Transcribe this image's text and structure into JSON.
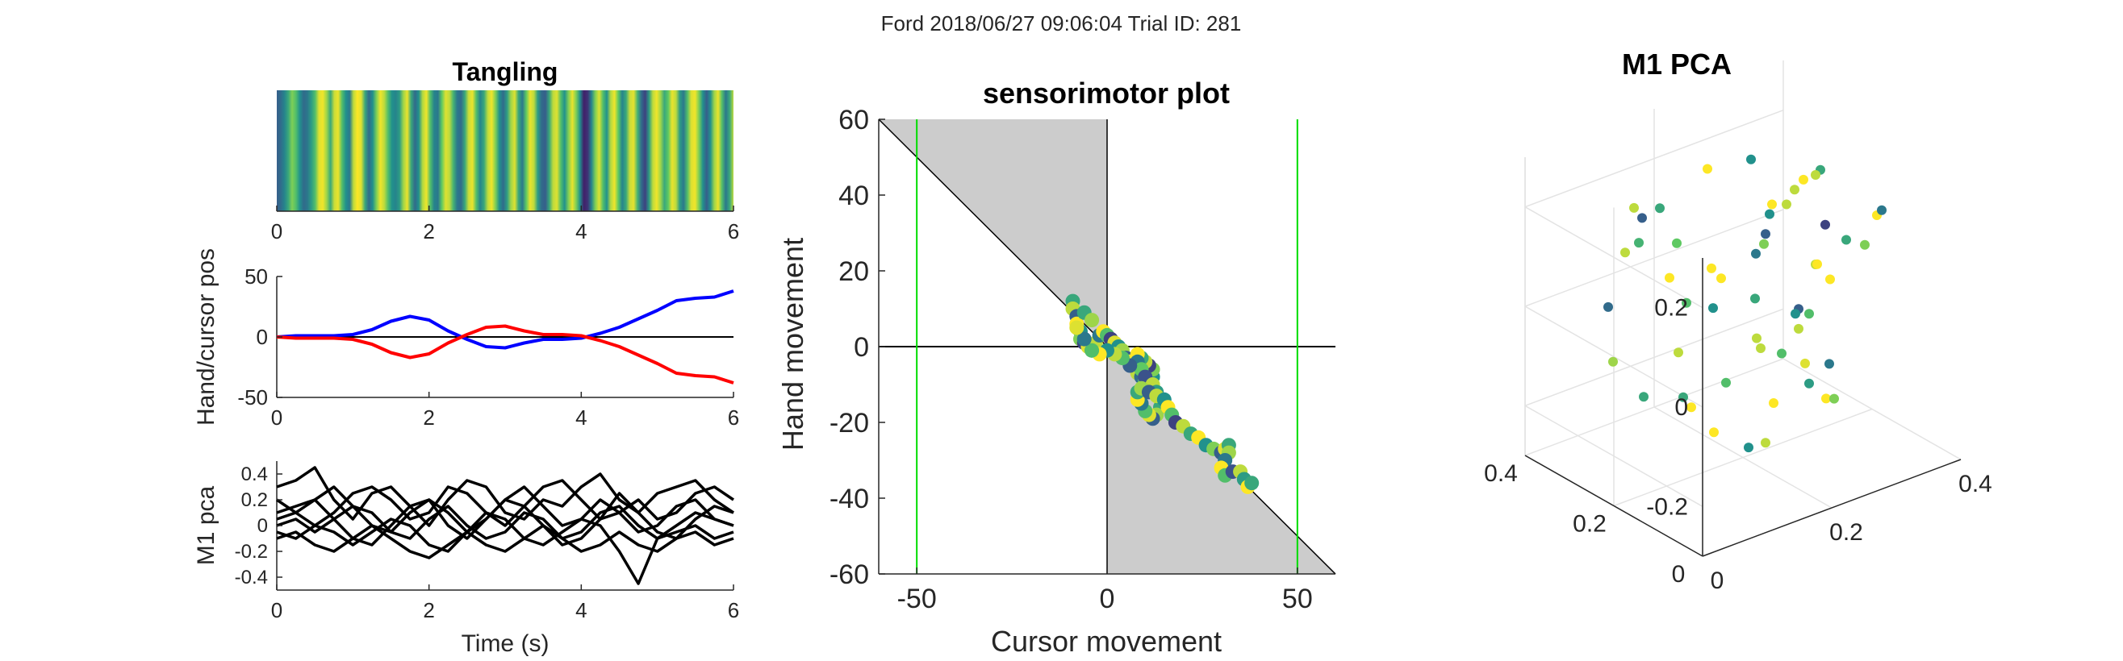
{
  "figure": {
    "suptitle": "Ford 2018/06/27 09:06:04 Trial ID: 281"
  },
  "colors": {
    "hand": "#0000ff",
    "cursor": "#ff0000",
    "pca_lines": "#000000",
    "shade": "#cccccc",
    "bounds": "#00dd00",
    "viridis": [
      "#440154",
      "#3b528b",
      "#21918c",
      "#5ec962",
      "#fde725"
    ]
  },
  "chart_data": [
    {
      "id": "tangling",
      "type": "heatmap",
      "title": "Tangling",
      "xlabel": "",
      "ylabel": "",
      "xlim": [
        0,
        6
      ],
      "xticks": [
        0,
        2,
        4,
        6
      ],
      "x_step": 0.05,
      "values": [
        0.3,
        0.35,
        0.45,
        0.6,
        0.8,
        0.7,
        0.5,
        0.35,
        0.4,
        0.55,
        0.7,
        0.95,
        0.98,
        0.85,
        0.6,
        0.92,
        0.97,
        0.7,
        0.5,
        0.4,
        0.9,
        1.0,
        0.95,
        0.6,
        0.35,
        0.5,
        0.8,
        0.98,
        0.9,
        0.7,
        0.5,
        0.45,
        0.55,
        0.85,
        0.97,
        0.6,
        0.35,
        0.5,
        0.88,
        0.98,
        0.7,
        0.45,
        0.4,
        0.75,
        0.95,
        0.9,
        0.65,
        0.4,
        0.35,
        0.6,
        0.92,
        0.97,
        0.7,
        0.45,
        0.6,
        0.9,
        0.98,
        0.8,
        0.5,
        0.35,
        0.55,
        0.85,
        0.95,
        0.6,
        0.4,
        0.75,
        0.97,
        0.9,
        0.55,
        0.35,
        0.3,
        0.6,
        0.9,
        0.95,
        0.7,
        0.5,
        0.8,
        0.97,
        0.8,
        0.5,
        0.1,
        0.15,
        0.45,
        0.8,
        0.95,
        0.7,
        0.5,
        0.88,
        0.98,
        0.75,
        0.45,
        0.6,
        0.92,
        0.96,
        0.65,
        0.35,
        0.2,
        0.55,
        0.9,
        0.98,
        0.85,
        0.6,
        0.75,
        0.97,
        0.9,
        0.55,
        0.4,
        0.7,
        0.95,
        0.98,
        0.8,
        0.5,
        0.3,
        0.5,
        0.85,
        0.97,
        0.7,
        0.4,
        0.6,
        0.9
      ]
    },
    {
      "id": "hand_cursor",
      "type": "line",
      "xlabel": "",
      "ylabel": "Hand/cursor pos",
      "xlim": [
        0,
        6
      ],
      "ylim": [
        -50,
        50
      ],
      "xticks": [
        0,
        2,
        4,
        6
      ],
      "yticks": [
        -50,
        0,
        50
      ],
      "x": [
        0,
        0.25,
        0.5,
        0.75,
        1.0,
        1.25,
        1.5,
        1.75,
        2.0,
        2.25,
        2.5,
        2.75,
        3.0,
        3.25,
        3.5,
        3.75,
        4.0,
        4.25,
        4.5,
        4.75,
        5.0,
        5.25,
        5.5,
        5.75,
        6.0
      ],
      "series": [
        {
          "color": "hand",
          "values": [
            0,
            1,
            1,
            1,
            2,
            6,
            13,
            17,
            14,
            5,
            -2,
            -8,
            -9,
            -5,
            -2,
            -2,
            -1,
            3,
            8,
            15,
            22,
            30,
            32,
            33,
            38
          ]
        },
        {
          "color": "cursor",
          "values": [
            0,
            -1,
            -1,
            -1,
            -2,
            -6,
            -13,
            -17,
            -14,
            -5,
            2,
            8,
            9,
            5,
            2,
            2,
            1,
            -3,
            -8,
            -15,
            -22,
            -30,
            -32,
            -33,
            -38
          ]
        }
      ]
    },
    {
      "id": "m1_pca_traces",
      "type": "line",
      "xlabel": "Time (s)",
      "ylabel": "M1 pca",
      "xlim": [
        0,
        6
      ],
      "ylim": [
        -0.5,
        0.5
      ],
      "xticks": [
        0,
        2,
        4,
        6
      ],
      "yticks": [
        -0.4,
        -0.2,
        0,
        0.2,
        0.4
      ],
      "x": [
        0,
        0.25,
        0.5,
        0.75,
        1.0,
        1.25,
        1.5,
        1.75,
        2.0,
        2.25,
        2.5,
        2.75,
        3.0,
        3.25,
        3.5,
        3.75,
        4.0,
        4.25,
        4.5,
        4.75,
        5.0,
        5.25,
        5.5,
        5.75,
        6.0
      ],
      "series": [
        {
          "values": [
            0.3,
            0.35,
            0.45,
            0.2,
            0.05,
            0.25,
            0.3,
            0.15,
            0.0,
            0.2,
            0.35,
            0.3,
            0.1,
            0.05,
            0.2,
            0.15,
            0.3,
            0.4,
            0.2,
            0.1,
            0.25,
            0.3,
            0.35,
            0.2,
            0.1
          ]
        },
        {
          "values": [
            0.2,
            0.1,
            0.0,
            0.1,
            0.25,
            0.3,
            0.2,
            0.05,
            0.1,
            0.3,
            0.25,
            0.1,
            0.0,
            0.15,
            0.3,
            0.35,
            0.2,
            0.05,
            0.1,
            0.2,
            0.05,
            0.1,
            0.25,
            0.3,
            0.2
          ]
        },
        {
          "values": [
            0.1,
            0.15,
            0.2,
            0.3,
            0.15,
            0.0,
            -0.05,
            0.1,
            0.2,
            0.1,
            -0.05,
            0.05,
            0.2,
            0.3,
            0.15,
            0.0,
            0.05,
            0.2,
            0.1,
            -0.05,
            0.0,
            0.15,
            0.2,
            0.05,
            0.0
          ]
        },
        {
          "values": [
            0.0,
            0.05,
            -0.05,
            0.05,
            0.15,
            0.1,
            -0.05,
            -0.1,
            0.05,
            0.15,
            0.0,
            -0.1,
            -0.05,
            0.1,
            0.05,
            -0.1,
            -0.05,
            0.1,
            0.15,
            0.0,
            -0.1,
            0.0,
            0.1,
            0.05,
            0.0
          ]
        },
        {
          "values": [
            -0.05,
            -0.1,
            0.0,
            -0.05,
            -0.15,
            -0.05,
            0.05,
            0.0,
            -0.15,
            -0.2,
            -0.05,
            0.1,
            0.05,
            -0.1,
            -0.15,
            -0.05,
            0.05,
            0.0,
            -0.2,
            -0.45,
            -0.1,
            -0.05,
            0.0,
            -0.1,
            -0.05
          ]
        },
        {
          "values": [
            -0.1,
            -0.05,
            -0.15,
            -0.2,
            -0.1,
            0.0,
            -0.1,
            -0.2,
            -0.25,
            -0.15,
            -0.05,
            -0.15,
            -0.2,
            -0.1,
            0.0,
            -0.1,
            -0.2,
            -0.15,
            -0.05,
            -0.15,
            -0.2,
            -0.1,
            -0.05,
            -0.15,
            -0.1
          ]
        },
        {
          "values": [
            0.05,
            0.1,
            0.2,
            0.05,
            -0.1,
            -0.15,
            0.0,
            0.15,
            0.2,
            0.0,
            -0.1,
            0.05,
            0.2,
            0.15,
            0.0,
            -0.15,
            -0.1,
            0.05,
            0.25,
            0.1,
            -0.05,
            -0.1,
            0.05,
            0.15,
            0.1
          ]
        }
      ]
    },
    {
      "id": "sensorimotor",
      "type": "scatter",
      "title": "sensorimotor plot",
      "xlabel": "Cursor movement",
      "ylabel": "Hand movement",
      "xlim": [
        -60,
        60
      ],
      "ylim": [
        -60,
        60
      ],
      "xticks": [
        -50,
        0,
        50
      ],
      "yticks": [
        -60,
        -40,
        -20,
        0,
        20,
        40,
        60
      ],
      "bounds_x": [
        -50,
        50
      ],
      "points": [
        [
          -9,
          12,
          0.6
        ],
        [
          -9,
          10,
          0.9
        ],
        [
          -8,
          8,
          0.3
        ],
        [
          -8,
          6,
          1.0
        ],
        [
          -7,
          4,
          0.5
        ],
        [
          -7,
          2,
          0.8
        ],
        [
          -6,
          1,
          0.2
        ],
        [
          -5,
          0,
          0.95
        ],
        [
          -4,
          -1,
          0.6
        ],
        [
          -3,
          1,
          0.9
        ],
        [
          -2,
          3,
          0.4
        ],
        [
          -1,
          4,
          1.0
        ],
        [
          0,
          3,
          0.7
        ],
        [
          1,
          2,
          0.2
        ],
        [
          2,
          1,
          0.95
        ],
        [
          3,
          0,
          0.5
        ],
        [
          4,
          -1,
          0.85
        ],
        [
          5,
          -3,
          0.3
        ],
        [
          6,
          -4,
          1.0
        ],
        [
          7,
          -5,
          0.6
        ],
        [
          8,
          -7,
          0.9
        ],
        [
          9,
          -8,
          0.35
        ],
        [
          10,
          -9,
          0.7
        ],
        [
          11,
          -10,
          1.0
        ],
        [
          12,
          -8,
          0.5
        ],
        [
          12,
          -6,
          0.8
        ],
        [
          11,
          -5,
          0.2
        ],
        [
          10,
          -4,
          0.9
        ],
        [
          9,
          -3,
          0.6
        ],
        [
          8,
          -2,
          1.0
        ],
        [
          8,
          -4,
          0.4
        ],
        [
          9,
          -6,
          0.75
        ],
        [
          10,
          -8,
          0.25
        ],
        [
          12,
          -10,
          0.9
        ],
        [
          13,
          -12,
          0.55
        ],
        [
          14,
          -14,
          1.0
        ],
        [
          14,
          -16,
          0.6
        ],
        [
          13,
          -18,
          0.85
        ],
        [
          12,
          -19,
          0.3
        ],
        [
          11,
          -18,
          0.95
        ],
        [
          10,
          -17,
          0.7
        ],
        [
          9,
          -15,
          0.4
        ],
        [
          8,
          -14,
          1.0
        ],
        [
          8,
          -12,
          0.6
        ],
        [
          9,
          -11,
          0.85
        ],
        [
          11,
          -12,
          0.3
        ],
        [
          13,
          -13,
          0.9
        ],
        [
          15,
          -14,
          0.5
        ],
        [
          16,
          -16,
          1.0
        ],
        [
          17,
          -18,
          0.7
        ],
        [
          18,
          -20,
          0.2
        ],
        [
          20,
          -21,
          0.9
        ],
        [
          22,
          -23,
          0.6
        ],
        [
          24,
          -24,
          1.0
        ],
        [
          26,
          -26,
          0.5
        ],
        [
          28,
          -27,
          0.8
        ],
        [
          30,
          -28,
          0.3
        ],
        [
          31,
          -27,
          0.95
        ],
        [
          32,
          -26,
          0.6
        ],
        [
          32,
          -28,
          0.85
        ],
        [
          31,
          -30,
          0.4
        ],
        [
          30,
          -32,
          1.0
        ],
        [
          31,
          -34,
          0.7
        ],
        [
          33,
          -33,
          0.25
        ],
        [
          35,
          -33,
          0.9
        ],
        [
          36,
          -35,
          0.55
        ],
        [
          37,
          -37,
          1.0
        ],
        [
          38,
          -36,
          0.6
        ],
        [
          6,
          -5,
          0.3
        ],
        [
          4,
          -3,
          0.7
        ],
        [
          2,
          -2,
          0.9
        ],
        [
          0,
          -1,
          0.5
        ],
        [
          -2,
          -2,
          1.0
        ],
        [
          -4,
          -1,
          0.7
        ],
        [
          -6,
          2,
          0.4
        ],
        [
          -8,
          5,
          0.95
        ],
        [
          -6,
          9,
          0.6
        ],
        [
          -4,
          7,
          0.85
        ]
      ]
    },
    {
      "id": "m1_pca_3d",
      "type": "scatter",
      "title": "M1 PCA",
      "xlabel": "",
      "ylabel": "",
      "xlim": [
        0,
        0.4
      ],
      "ylim": [
        0,
        0.4
      ],
      "zlim": [
        -0.3,
        0.3
      ],
      "xticks": [
        0,
        0.2,
        0.4
      ],
      "yticks": [
        0,
        0.2,
        0.4
      ],
      "zticks": [
        -0.2,
        0,
        0.2
      ],
      "points": [
        [
          0.18,
          0.12,
          0.2,
          0.3
        ],
        [
          0.2,
          0.14,
          0.22,
          0.5
        ],
        [
          0.24,
          0.16,
          0.21,
          0.9
        ],
        [
          0.28,
          0.18,
          0.23,
          1.0
        ],
        [
          0.32,
          0.2,
          0.22,
          0.6
        ],
        [
          0.34,
          0.24,
          0.18,
          0.9
        ],
        [
          0.3,
          0.28,
          0.12,
          1.0
        ],
        [
          0.26,
          0.24,
          0.08,
          0.8
        ],
        [
          0.22,
          0.2,
          0.1,
          0.4
        ],
        [
          0.18,
          0.22,
          0.06,
          1.0
        ],
        [
          0.14,
          0.24,
          0.02,
          0.7
        ],
        [
          0.1,
          0.2,
          -0.04,
          0.9
        ],
        [
          0.08,
          0.16,
          -0.1,
          0.6
        ],
        [
          0.1,
          0.12,
          -0.16,
          1.0
        ],
        [
          0.14,
          0.1,
          -0.2,
          0.5
        ],
        [
          0.18,
          0.12,
          -0.22,
          0.9
        ],
        [
          0.22,
          0.16,
          -0.18,
          1.0
        ],
        [
          0.26,
          0.2,
          -0.12,
          0.7
        ],
        [
          0.3,
          0.22,
          -0.06,
          0.3
        ],
        [
          0.34,
          0.24,
          0.0,
          0.9
        ],
        [
          0.36,
          0.2,
          0.06,
          0.6
        ],
        [
          0.38,
          0.16,
          0.12,
          1.0
        ],
        [
          0.36,
          0.12,
          0.16,
          0.4
        ],
        [
          0.32,
          0.1,
          0.12,
          0.8
        ],
        [
          0.28,
          0.12,
          0.06,
          1.0
        ],
        [
          0.24,
          0.14,
          0.0,
          0.5
        ],
        [
          0.2,
          0.16,
          -0.06,
          0.9
        ],
        [
          0.16,
          0.18,
          -0.12,
          0.7
        ],
        [
          0.12,
          0.2,
          -0.16,
          1.0
        ],
        [
          0.06,
          0.22,
          -0.12,
          0.6
        ],
        [
          0.04,
          0.26,
          -0.06,
          0.85
        ],
        [
          0.06,
          0.3,
          0.02,
          0.35
        ],
        [
          0.1,
          0.32,
          0.1,
          0.9
        ],
        [
          0.14,
          0.3,
          0.18,
          0.6
        ],
        [
          0.2,
          0.28,
          0.24,
          1.0
        ],
        [
          0.24,
          0.24,
          0.26,
          0.5
        ],
        [
          0.28,
          0.2,
          0.2,
          0.9
        ],
        [
          0.3,
          0.16,
          0.14,
          0.2
        ],
        [
          0.26,
          0.12,
          0.1,
          1.0
        ],
        [
          0.22,
          0.08,
          0.04,
          0.7
        ],
        [
          0.2,
          0.06,
          -0.04,
          0.95
        ],
        [
          0.22,
          0.08,
          -0.1,
          0.55
        ],
        [
          0.26,
          0.1,
          -0.16,
          1.0
        ],
        [
          0.3,
          0.14,
          -0.2,
          0.8
        ],
        [
          0.32,
          0.18,
          -0.16,
          0.4
        ],
        [
          0.3,
          0.22,
          -0.1,
          0.9
        ],
        [
          0.26,
          0.26,
          -0.04,
          0.6
        ],
        [
          0.22,
          0.3,
          0.02,
          1.0
        ],
        [
          0.18,
          0.32,
          0.08,
          0.75
        ],
        [
          0.14,
          0.34,
          0.14,
          0.3
        ],
        [
          0.1,
          0.3,
          0.2,
          0.9
        ],
        [
          0.08,
          0.26,
          0.16,
          0.65
        ],
        [
          0.1,
          0.22,
          0.1,
          1.0
        ],
        [
          0.14,
          0.18,
          0.04,
          0.5
        ],
        [
          0.18,
          0.14,
          -0.02,
          0.9
        ]
      ]
    }
  ]
}
